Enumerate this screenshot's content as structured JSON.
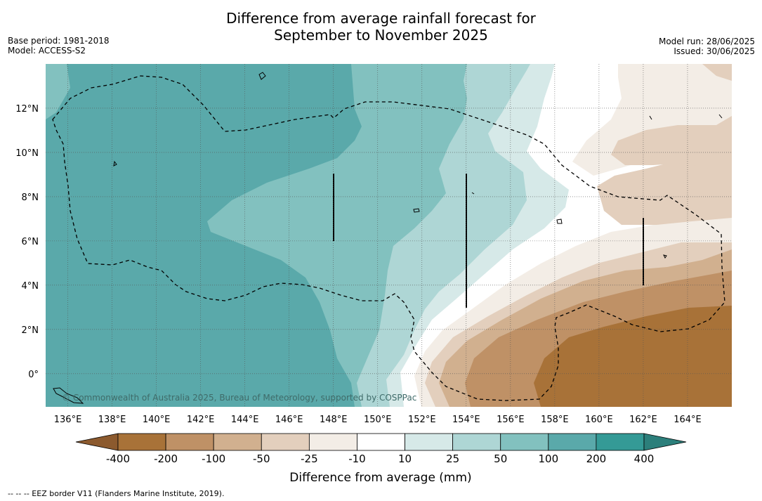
{
  "title": {
    "line1": "Difference from average rainfall forecast for",
    "line2": "September to November 2025"
  },
  "meta_left": {
    "base_period": "Base period: 1981-2018",
    "model": "Model: ACCESS-S2"
  },
  "meta_right": {
    "model_run": "Model run: 28/06/2025",
    "issued": "Issued: 30/06/2025"
  },
  "map": {
    "lon_range": [
      135,
      166
    ],
    "lat_range": [
      -1.5,
      14
    ],
    "lon_ticks": [
      "136°E",
      "138°E",
      "140°E",
      "142°E",
      "144°E",
      "146°E",
      "148°E",
      "150°E",
      "152°E",
      "154°E",
      "156°E",
      "158°E",
      "160°E",
      "162°E",
      "164°E"
    ],
    "lat_ticks": [
      "12°N",
      "10°N",
      "8°N",
      "6°N",
      "4°N",
      "2°N",
      "0°"
    ],
    "copyright": "© Commonwealth of Australia 2025, Bureau of Meteorology, supported by COSPPac",
    "grid": true
  },
  "colorbar": {
    "labels": [
      "-400",
      "-200",
      "-100",
      "-50",
      "-25",
      "-10",
      "10",
      "25",
      "50",
      "100",
      "200",
      "400"
    ],
    "colors": [
      "#a87238",
      "#bf9166",
      "#d1b08f",
      "#e3cfbd",
      "#f3ede6",
      "#ffffff",
      "#d6e9e8",
      "#aed6d5",
      "#82c1bf",
      "#5aa9aa",
      "#349a96"
    ],
    "extend_low_color": "#8c5a2e",
    "extend_high_color": "#2c7f7b",
    "title": "Difference from average (mm)"
  },
  "footnote": "--  --  -- EEZ border V11 (Flanders Marine Institute, 2019)."
}
